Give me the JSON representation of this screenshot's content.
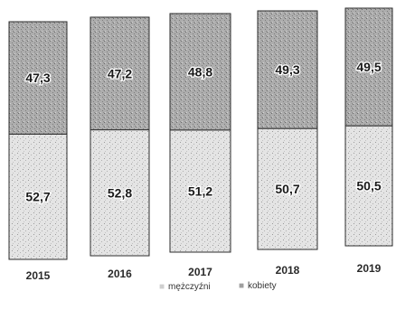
{
  "chart_data": {
    "type": "bar",
    "stacked": true,
    "categories": [
      "2015",
      "2016",
      "2017",
      "2018",
      "2019"
    ],
    "series": [
      {
        "name": "mężczyźni",
        "values": [
          52.7,
          52.8,
          51.2,
          50.7,
          50.5
        ],
        "labels": [
          "52,7",
          "52,8",
          "51,2",
          "50,7",
          "50,5"
        ],
        "color": "#e2e2e2"
      },
      {
        "name": "kobiety",
        "values": [
          47.3,
          47.2,
          48.8,
          49.3,
          49.5
        ],
        "labels": [
          "47,3",
          "47,2",
          "48,8",
          "49,3",
          "49,5"
        ],
        "color": "#a8a8a8"
      }
    ],
    "legend": {
      "position": "bottom",
      "items": [
        {
          "marker": "■",
          "label": "mężczyźni"
        },
        {
          "marker": "■",
          "label": "kobiety"
        }
      ]
    },
    "ylim": [
      0,
      100
    ],
    "grid": false
  }
}
